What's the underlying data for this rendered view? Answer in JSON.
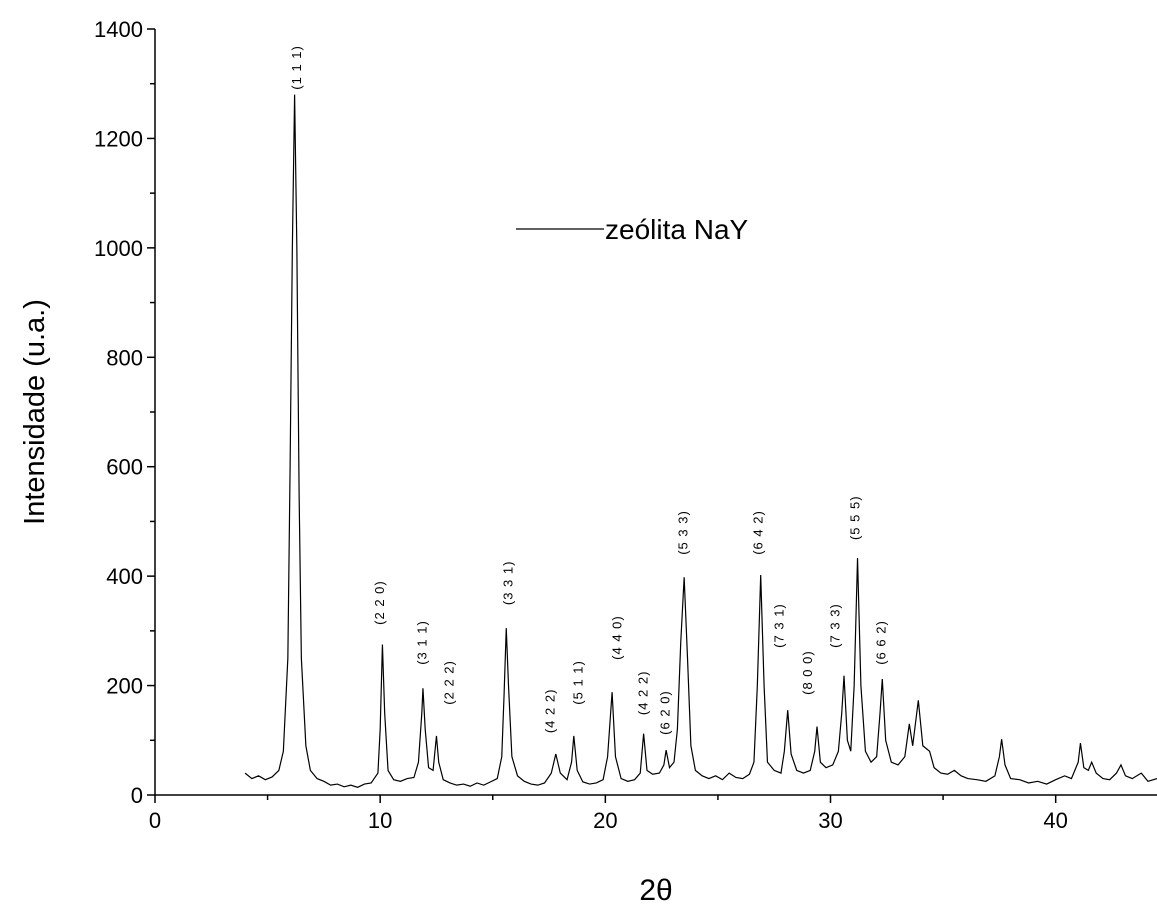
{
  "chart_data": {
    "type": "line",
    "x_label": "2θ",
    "y_label": "Intensidade (u.a.)",
    "xlim": [
      0,
      44.5
    ],
    "ylim": [
      0,
      1400
    ],
    "xticks": [
      0,
      10,
      20,
      30,
      40
    ],
    "xticks_minor": [
      5,
      15,
      25,
      35
    ],
    "yticks": [
      0,
      200,
      400,
      600,
      800,
      1000,
      1200,
      1400
    ],
    "yticks_minor": [
      100,
      300,
      500,
      700,
      900,
      1100,
      1300
    ],
    "legend": "upper center",
    "x": [
      4.0,
      4.3,
      4.6,
      4.9,
      5.2,
      5.5,
      5.7,
      5.9,
      6.0,
      6.1,
      6.2,
      6.3,
      6.4,
      6.5,
      6.7,
      6.9,
      7.2,
      7.5,
      7.8,
      8.1,
      8.4,
      8.7,
      9.0,
      9.3,
      9.6,
      9.9,
      10.0,
      10.1,
      10.2,
      10.35,
      10.6,
      10.9,
      11.2,
      11.5,
      11.7,
      11.85,
      11.9,
      12.0,
      12.15,
      12.35,
      12.5,
      12.6,
      12.8,
      13.1,
      13.4,
      13.7,
      14.0,
      14.3,
      14.6,
      14.9,
      15.2,
      15.4,
      15.5,
      15.6,
      15.7,
      15.85,
      16.1,
      16.4,
      16.7,
      17.0,
      17.3,
      17.6,
      17.8,
      18.0,
      18.3,
      18.5,
      18.6,
      18.75,
      19.0,
      19.3,
      19.6,
      19.9,
      20.1,
      20.3,
      20.45,
      20.7,
      21.0,
      21.3,
      21.55,
      21.7,
      21.85,
      22.1,
      22.4,
      22.6,
      22.7,
      22.85,
      23.05,
      23.2,
      23.35,
      23.5,
      23.65,
      23.8,
      24.0,
      24.3,
      24.6,
      24.9,
      25.2,
      25.5,
      25.8,
      26.1,
      26.4,
      26.6,
      26.75,
      26.9,
      27.05,
      27.2,
      27.5,
      27.8,
      27.95,
      28.1,
      28.25,
      28.5,
      28.8,
      29.1,
      29.3,
      29.4,
      29.55,
      29.8,
      30.1,
      30.35,
      30.5,
      30.6,
      30.75,
      30.9,
      31.05,
      31.2,
      31.35,
      31.55,
      31.8,
      32.05,
      32.2,
      32.3,
      32.45,
      32.7,
      33.0,
      33.3,
      33.5,
      33.65,
      33.9,
      34.1,
      34.4,
      34.6,
      34.9,
      35.2,
      35.5,
      35.8,
      36.1,
      36.5,
      36.9,
      37.3,
      37.5,
      37.6,
      37.75,
      38.0,
      38.4,
      38.8,
      39.2,
      39.6,
      40.0,
      40.4,
      40.7,
      41.0,
      41.1,
      41.25,
      41.45,
      41.6,
      41.8,
      42.1,
      42.4,
      42.7,
      42.9,
      43.1,
      43.4,
      43.8,
      44.1,
      44.5
    ],
    "series": [
      {
        "name": "zeólita NaY",
        "color": "#000000",
        "values": [
          40,
          30,
          35,
          28,
          33,
          45,
          80,
          250,
          600,
          1000,
          1280,
          1000,
          550,
          250,
          90,
          45,
          30,
          25,
          18,
          20,
          15,
          18,
          14,
          20,
          22,
          40,
          120,
          275,
          150,
          45,
          28,
          25,
          30,
          32,
          60,
          150,
          195,
          120,
          50,
          45,
          108,
          60,
          28,
          22,
          18,
          20,
          16,
          22,
          18,
          24,
          30,
          70,
          180,
          305,
          200,
          70,
          35,
          25,
          20,
          18,
          22,
          40,
          75,
          40,
          28,
          60,
          108,
          45,
          24,
          20,
          22,
          28,
          70,
          188,
          70,
          30,
          25,
          28,
          40,
          112,
          45,
          38,
          40,
          55,
          82,
          50,
          60,
          120,
          280,
          398,
          250,
          90,
          45,
          35,
          30,
          35,
          28,
          40,
          32,
          30,
          38,
          60,
          200,
          402,
          200,
          60,
          45,
          40,
          80,
          155,
          75,
          45,
          40,
          45,
          80,
          125,
          60,
          50,
          55,
          80,
          150,
          218,
          100,
          80,
          200,
          433,
          200,
          80,
          60,
          70,
          150,
          212,
          100,
          60,
          55,
          70,
          130,
          90,
          173,
          90,
          80,
          50,
          40,
          38,
          45,
          35,
          30,
          28,
          25,
          35,
          70,
          102,
          55,
          30,
          28,
          22,
          25,
          20,
          28,
          35,
          30,
          60,
          95,
          50,
          45,
          60,
          40,
          30,
          28,
          40,
          55,
          35,
          30,
          40,
          25,
          30
        ]
      }
    ],
    "annotations": [
      {
        "text": "(1 1 1)",
        "x": 6.3,
        "y": 1289
      },
      {
        "text": "(2 2 0)",
        "x": 10.0,
        "y": 311
      },
      {
        "text": "(3 1 1)",
        "x": 11.87,
        "y": 238
      },
      {
        "text": "(2 2 2)",
        "x": 13.07,
        "y": 165
      },
      {
        "text": "(3 3 1)",
        "x": 15.7,
        "y": 347
      },
      {
        "text": "(4 2 2)",
        "x": 17.56,
        "y": 113
      },
      {
        "text": "(5 1 1)",
        "x": 18.8,
        "y": 165
      },
      {
        "text": "(4 4 0)",
        "x": 20.53,
        "y": 247
      },
      {
        "text": "(4 2 2)",
        "x": 21.7,
        "y": 146
      },
      {
        "text": "(6 2 0)",
        "x": 22.67,
        "y": 110
      },
      {
        "text": "(5 3 3)",
        "x": 23.47,
        "y": 439
      },
      {
        "text": "(6 4 2)",
        "x": 26.8,
        "y": 439
      },
      {
        "text": "(7 3 1)",
        "x": 27.73,
        "y": 269
      },
      {
        "text": "(8 0 0)",
        "x": 29.0,
        "y": 183
      },
      {
        "text": "(7 3 3)",
        "x": 30.22,
        "y": 269
      },
      {
        "text": "(5 5 5)",
        "x": 31.1,
        "y": 466
      },
      {
        "text": "(6 6 2)",
        "x": 32.27,
        "y": 238
      }
    ]
  }
}
